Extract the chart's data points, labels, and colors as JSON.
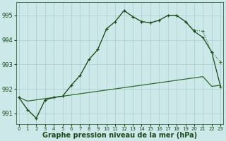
{
  "background_color": "#cce8e8",
  "grid_color": "#aacece",
  "dark_green": "#1a4a1a",
  "medium_green": "#2d6b2d",
  "hours": [
    0,
    1,
    2,
    3,
    4,
    5,
    6,
    7,
    8,
    9,
    10,
    11,
    12,
    13,
    14,
    15,
    16,
    17,
    18,
    19,
    20,
    21,
    22,
    23
  ],
  "series_dotted": [
    991.65,
    991.15,
    990.8,
    991.55,
    991.65,
    991.7,
    992.15,
    992.55,
    993.2,
    993.6,
    994.45,
    994.75,
    995.2,
    994.95,
    994.75,
    994.7,
    994.8,
    995.0,
    995.0,
    994.75,
    994.4,
    994.35,
    993.5,
    993.1
  ],
  "series_solid_markers": [
    991.65,
    991.15,
    990.8,
    991.55,
    991.65,
    991.7,
    992.15,
    992.55,
    993.2,
    993.6,
    994.45,
    994.75,
    995.2,
    994.95,
    994.75,
    994.7,
    994.8,
    995.0,
    995.0,
    994.75,
    994.35,
    994.1,
    993.5,
    992.1
  ],
  "series_flat": [
    991.65,
    991.5,
    991.55,
    991.6,
    991.65,
    991.7,
    991.75,
    991.8,
    991.85,
    991.9,
    991.95,
    992.0,
    992.05,
    992.1,
    992.15,
    992.2,
    992.25,
    992.3,
    992.35,
    992.4,
    992.45,
    992.5,
    992.1,
    992.15
  ],
  "ylim": [
    990.55,
    995.55
  ],
  "yticks": [
    991,
    992,
    993,
    994,
    995
  ],
  "xlabel": "Graphe pression niveau de la mer (hPa)",
  "axis_fontsize": 6,
  "label_fontsize": 7
}
